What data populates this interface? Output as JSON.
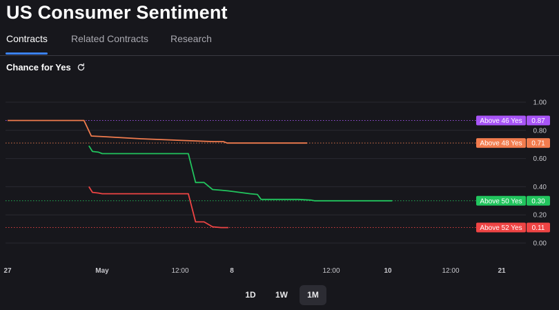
{
  "title": "US Consumer Sentiment",
  "tabs": [
    {
      "label": "Contracts",
      "active": true
    },
    {
      "label": "Related Contracts",
      "active": false
    },
    {
      "label": "Research",
      "active": false
    }
  ],
  "chart_header": {
    "label": "Chance for Yes",
    "icon": "refresh-icon"
  },
  "chart_data": {
    "type": "line",
    "y_ticks": [
      "1.00",
      "0.80",
      "0.60",
      "0.40",
      "0.20",
      "0.00"
    ],
    "ylim": [
      0,
      1
    ],
    "x_ticks": [
      "27",
      "May",
      "12:00",
      "8",
      "12:00",
      "10",
      "12:00",
      "21"
    ],
    "grid": true,
    "series": [
      {
        "name": "Above 46 Yes",
        "color": "#a855f7",
        "last": "0.87",
        "line": false,
        "points": []
      },
      {
        "name": "Above 48 Yes",
        "color": "#f27c4e",
        "last": "0.71",
        "line": true,
        "points": [
          [
            0.0,
            0.87
          ],
          [
            0.08,
            0.87
          ],
          [
            0.16,
            0.87
          ],
          [
            0.24,
            0.87
          ],
          [
            0.315,
            0.87
          ],
          [
            0.345,
            0.76
          ],
          [
            0.4,
            0.755
          ],
          [
            0.55,
            0.74
          ],
          [
            0.7,
            0.73
          ],
          [
            0.85,
            0.72
          ],
          [
            0.89,
            0.72
          ],
          [
            0.905,
            0.71
          ],
          [
            0.96,
            0.71
          ],
          [
            1.0,
            0.71
          ],
          [
            1.08,
            0.71
          ],
          [
            1.16,
            0.71
          ],
          [
            1.22,
            0.71
          ],
          [
            1.235,
            0.71
          ]
        ]
      },
      {
        "name": "Above 50 Yes",
        "color": "#22c55e",
        "last": "0.30",
        "line": true,
        "points": [
          [
            0.335,
            0.69
          ],
          [
            0.35,
            0.65
          ],
          [
            0.375,
            0.645
          ],
          [
            0.39,
            0.635
          ],
          [
            0.5,
            0.635
          ],
          [
            0.6,
            0.635
          ],
          [
            0.7,
            0.635
          ],
          [
            0.745,
            0.635
          ],
          [
            0.775,
            0.43
          ],
          [
            0.81,
            0.43
          ],
          [
            0.845,
            0.38
          ],
          [
            0.88,
            0.375
          ],
          [
            0.91,
            0.37
          ],
          [
            1.0,
            0.35
          ],
          [
            1.03,
            0.345
          ],
          [
            1.045,
            0.31
          ],
          [
            1.1,
            0.31
          ],
          [
            1.2,
            0.31
          ],
          [
            1.25,
            0.305
          ],
          [
            1.265,
            0.3
          ],
          [
            1.4,
            0.3
          ],
          [
            1.55,
            0.3
          ],
          [
            1.585,
            0.3
          ]
        ]
      },
      {
        "name": "Above 52 Yes",
        "color": "#ef4444",
        "last": "0.11",
        "line": true,
        "points": [
          [
            0.335,
            0.4
          ],
          [
            0.35,
            0.36
          ],
          [
            0.375,
            0.355
          ],
          [
            0.39,
            0.35
          ],
          [
            0.5,
            0.35
          ],
          [
            0.6,
            0.35
          ],
          [
            0.7,
            0.35
          ],
          [
            0.745,
            0.35
          ],
          [
            0.775,
            0.15
          ],
          [
            0.81,
            0.15
          ],
          [
            0.845,
            0.115
          ],
          [
            0.88,
            0.11
          ],
          [
            0.91,
            0.11
          ]
        ]
      }
    ]
  },
  "range_buttons": [
    {
      "label": "1D",
      "active": false
    },
    {
      "label": "1W",
      "active": false
    },
    {
      "label": "1M",
      "active": true
    }
  ]
}
